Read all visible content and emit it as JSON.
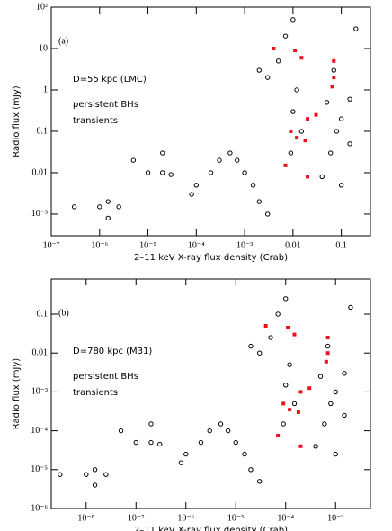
{
  "chart_data": [
    {
      "type": "scatter",
      "panel_label": "(a)",
      "annotation": "D=55 kpc (LMC)",
      "xlabel": "2–11 keV X-ray flux density (Crab)",
      "ylabel": "Radio flux (mJy)",
      "log_x": true,
      "log_y": true,
      "xlim": [
        1e-07,
        0.4
      ],
      "ylim": [
        0.0003,
        100
      ],
      "xticks": [
        {
          "value": 1e-07,
          "label": "10⁻⁷"
        },
        {
          "value": 1e-06,
          "label": "10⁻⁶"
        },
        {
          "value": 1e-05,
          "label": "10⁻⁵"
        },
        {
          "value": 0.0001,
          "label": "10⁻⁴"
        },
        {
          "value": 0.001,
          "label": "10⁻³"
        },
        0.01,
        0.1
      ],
      "yticks": [
        {
          "value": 100,
          "label": "10²"
        },
        10,
        1,
        0.1,
        0.01,
        {
          "value": 0.001,
          "label": "10⁻³"
        }
      ],
      "series": [
        {
          "name": "persistent BHs",
          "color": "#000000",
          "marker": "circle",
          "x": [
            3e-07,
            1e-06,
            1.5e-06,
            2.5e-06,
            1.5e-06,
            1e-05,
            2e-05,
            3e-05,
            5e-06,
            2e-05,
            8e-05,
            0.0001,
            0.0002,
            0.0003,
            0.0005,
            0.0007,
            0.001,
            0.0015,
            0.002,
            0.003,
            0.002,
            0.003,
            0.005,
            0.007,
            0.01,
            0.012,
            0.01,
            0.015,
            0.009,
            0.05,
            0.07,
            0.1,
            0.08,
            0.06,
            0.1,
            0.04,
            0.15,
            0.2,
            0.15
          ],
          "values": [
            0.0015,
            0.0015,
            0.0008,
            0.0015,
            0.002,
            0.01,
            0.01,
            0.009,
            0.02,
            0.03,
            0.003,
            0.005,
            0.01,
            0.02,
            0.03,
            0.02,
            0.01,
            0.005,
            0.002,
            0.001,
            3,
            2,
            5,
            20,
            50,
            1,
            0.3,
            0.1,
            0.03,
            0.5,
            3,
            0.2,
            0.1,
            0.03,
            0.005,
            0.008,
            0.05,
            30,
            0.6
          ]
        },
        {
          "name": "transients",
          "color": "#e8141c",
          "marker": "square",
          "x": [
            0.004,
            0.011,
            0.015,
            0.07,
            0.07,
            0.065,
            0.03,
            0.02,
            0.009,
            0.012,
            0.018,
            0.007,
            0.02
          ],
          "values": [
            10,
            9,
            6,
            5,
            2,
            1.2,
            0.25,
            0.2,
            0.1,
            0.07,
            0.06,
            0.015,
            0.008
          ]
        }
      ]
    },
    {
      "type": "scatter",
      "panel_label": "(b)",
      "annotation": "D=780 kpc (M31)",
      "xlabel": "2–11 keV X-ray flux density (Crab)",
      "ylabel": "Radio flux (mJy)",
      "log_x": true,
      "log_y": true,
      "xlim": [
        2e-09,
        0.005
      ],
      "ylim": [
        1e-06,
        0.8
      ],
      "xticks": [
        {
          "value": 1e-08,
          "label": "10⁻⁸"
        },
        {
          "value": 1e-07,
          "label": "10⁻⁷"
        },
        {
          "value": 1e-06,
          "label": "10⁻⁶"
        },
        {
          "value": 1e-05,
          "label": "10⁻⁵"
        },
        {
          "value": 0.0001,
          "label": "10⁻⁴"
        },
        {
          "value": 0.001,
          "label": "10⁻³"
        }
      ],
      "yticks": [
        0.1,
        0.01,
        {
          "value": 0.001,
          "label": "10⁻³"
        },
        {
          "value": 0.0001,
          "label": "10⁻⁴"
        },
        {
          "value": 1e-05,
          "label": "10⁻⁵"
        },
        {
          "value": 1e-06,
          "label": "10⁻⁶"
        }
      ],
      "series": [
        {
          "name": "persistent BHs",
          "color": "#000000",
          "marker": "circle",
          "x": [
            3e-09,
            1e-08,
            1.5e-08,
            2.5e-08,
            1.5e-08,
            1e-07,
            2e-07,
            3e-07,
            5e-08,
            2e-07,
            8e-07,
            1e-06,
            2e-06,
            3e-06,
            5e-06,
            7e-06,
            1e-05,
            1.5e-05,
            2e-05,
            3e-05,
            2e-05,
            3e-05,
            5e-05,
            7e-05,
            0.0001,
            0.00012,
            0.0001,
            0.00015,
            9e-05,
            0.0005,
            0.0007,
            0.001,
            0.0008,
            0.0006,
            0.001,
            0.0004,
            0.0015,
            0.002,
            0.0015
          ],
          "values": [
            7.5e-06,
            7.5e-06,
            4e-06,
            7.5e-06,
            1e-05,
            5e-05,
            5e-05,
            4.5e-05,
            0.0001,
            0.00015,
            1.5e-05,
            2.5e-05,
            5e-05,
            0.0001,
            0.00015,
            0.0001,
            5e-05,
            2.5e-05,
            1e-05,
            5e-06,
            0.015,
            0.01,
            0.025,
            0.1,
            0.25,
            0.005,
            0.0015,
            0.0005,
            0.00015,
            0.0025,
            0.015,
            0.001,
            0.0005,
            0.00015,
            2.5e-05,
            4e-05,
            0.00025,
            0.15,
            0.003
          ]
        },
        {
          "name": "transients",
          "color": "#e8141c",
          "marker": "square",
          "x": [
            4e-05,
            0.00011,
            0.00015,
            0.0007,
            0.0007,
            0.00065,
            0.0003,
            0.0002,
            9e-05,
            0.00012,
            0.00018,
            7e-05,
            0.0002
          ],
          "values": [
            0.05,
            0.045,
            0.03,
            0.025,
            0.01,
            0.006,
            0.00125,
            0.001,
            0.0005,
            0.00035,
            0.0003,
            7.5e-05,
            4e-05
          ]
        }
      ]
    }
  ]
}
